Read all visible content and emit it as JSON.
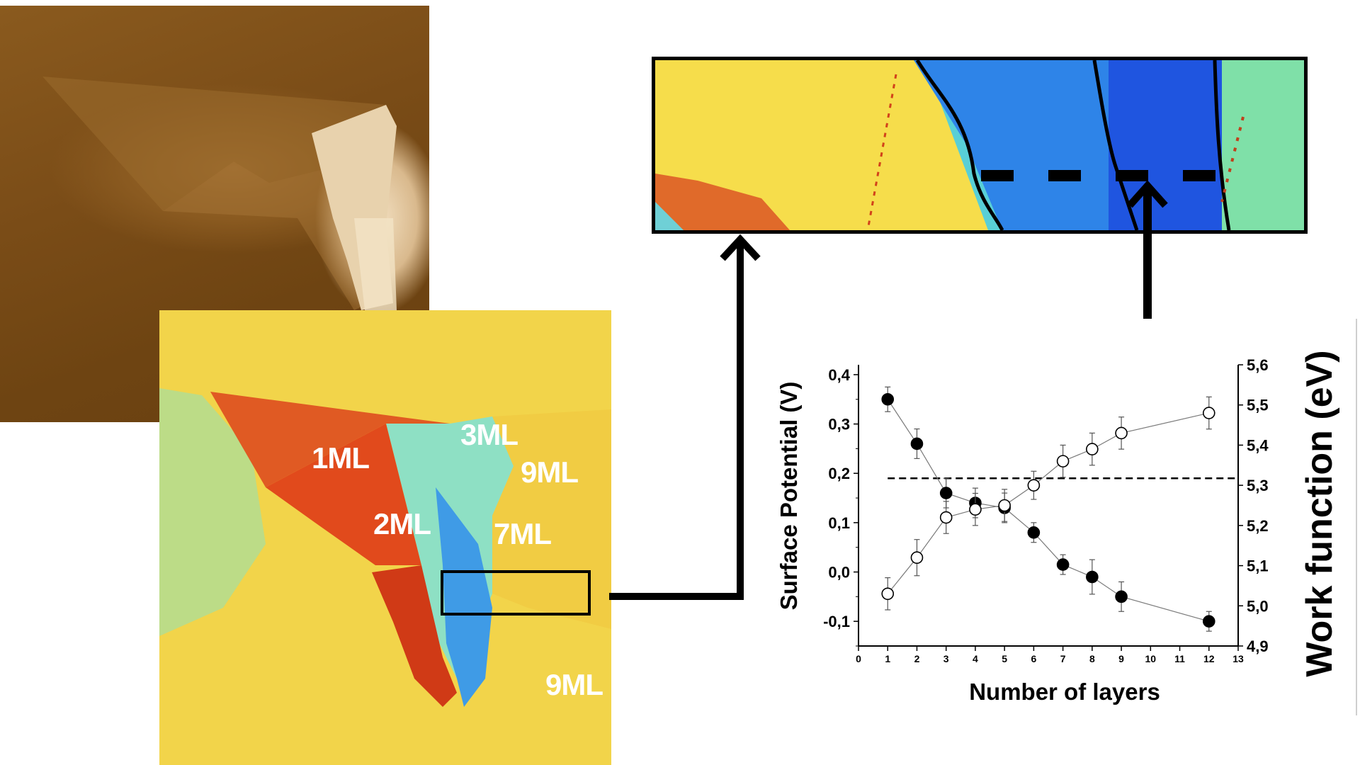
{
  "colors": {
    "topography_brown": "#7a4c17",
    "kpfm_yellow": "#f2d44a",
    "kpfm_red": "#e04a1c",
    "kpfm_cyan": "#5fd6d2",
    "kpfm_blue": "#2a7fe0",
    "frame_black": "#000000",
    "label_white": "#ffffff"
  },
  "images": {
    "topography": "afm-topography-image",
    "potential_map": "kpfm-surface-potential-map",
    "zoom": "kpfm-zoomed-region"
  },
  "layer_labels": [
    "1ML",
    "3ML",
    "9ML",
    "2ML",
    "7ML",
    "9ML"
  ],
  "chart_data": {
    "type": "scatter",
    "xlabel": "Number of layers",
    "ylabel": "Surface Potential (V)",
    "y2label": "Work function (eV)",
    "xlim": [
      0,
      13
    ],
    "ylim": [
      -0.15,
      0.42
    ],
    "y2lim": [
      4.9,
      5.6
    ],
    "x_ticks": [
      "0",
      "1",
      "2",
      "3",
      "4",
      "5",
      "6",
      "7",
      "8",
      "9",
      "10",
      "11",
      "12",
      "13"
    ],
    "y_ticks": [
      "-0,1",
      "0,0",
      "0,1",
      "0,2",
      "0,3",
      "0,4"
    ],
    "y_tick_values": [
      -0.1,
      0.0,
      0.1,
      0.2,
      0.3,
      0.4
    ],
    "y2_ticks": [
      "4,9",
      "5,0",
      "5,1",
      "5,2",
      "5,3",
      "5,4",
      "5,5",
      "5,6"
    ],
    "y2_tick_values": [
      4.9,
      5.0,
      5.1,
      5.2,
      5.3,
      5.4,
      5.5,
      5.6
    ],
    "series": [
      {
        "axis": "left",
        "marker": "filled",
        "x": [
          1,
          2,
          3,
          4,
          5,
          6,
          7,
          8,
          9,
          12
        ],
        "y": [
          0.35,
          0.26,
          0.16,
          0.14,
          0.13,
          0.08,
          0.015,
          -0.01,
          -0.05,
          -0.1
        ],
        "err": [
          0.025,
          0.03,
          0.03,
          0.03,
          0.03,
          0.02,
          0.02,
          0.035,
          0.03,
          0.02
        ]
      },
      {
        "axis": "right",
        "marker": "open",
        "x": [
          1,
          2,
          3,
          4,
          5,
          6,
          7,
          8,
          9,
          12
        ],
        "y": [
          5.03,
          5.12,
          5.22,
          5.24,
          5.25,
          5.3,
          5.36,
          5.39,
          5.43,
          5.48
        ],
        "err": [
          0.04,
          0.045,
          0.04,
          0.04,
          0.04,
          0.035,
          0.04,
          0.04,
          0.04,
          0.04
        ]
      }
    ],
    "reference_line": {
      "axis": "left",
      "y": 0.19,
      "x": [
        1,
        13
      ],
      "style": "dashed"
    },
    "grid": false,
    "legend": "none"
  }
}
